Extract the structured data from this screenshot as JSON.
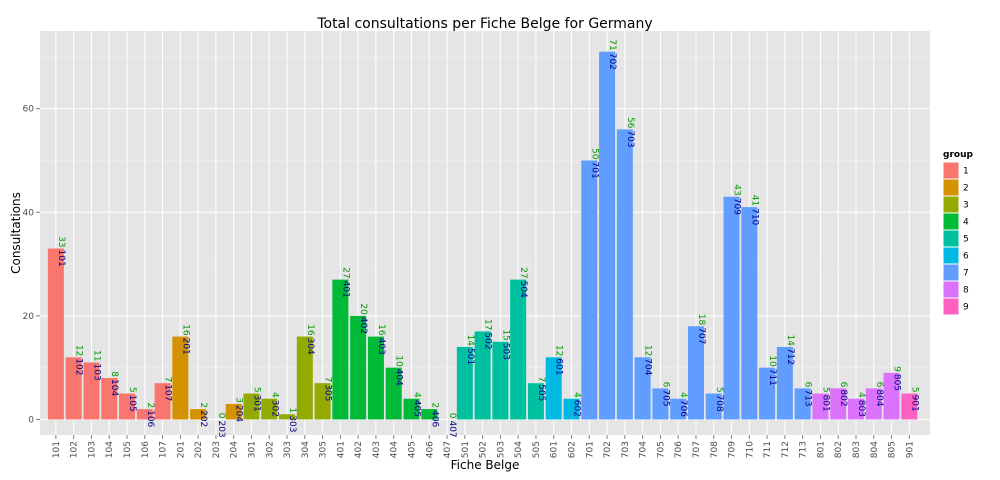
{
  "chart_data": {
    "type": "bar",
    "title": "Total consultations per Fiche Belge for Germany",
    "xlabel": "Fiche Belge",
    "ylabel": "Consultations",
    "ylim": [
      -3,
      75
    ],
    "yticks": [
      0,
      20,
      40,
      60
    ],
    "grid": true,
    "legend": {
      "title": "group",
      "placement": "right",
      "items": [
        {
          "label": "1",
          "color": "#F8766D"
        },
        {
          "label": "2",
          "color": "#D39200"
        },
        {
          "label": "3",
          "color": "#93AA00"
        },
        {
          "label": "4",
          "color": "#00BA38"
        },
        {
          "label": "5",
          "color": "#00C19F"
        },
        {
          "label": "6",
          "color": "#00B9E3"
        },
        {
          "label": "7",
          "color": "#619CFF"
        },
        {
          "label": "8",
          "color": "#DB72FB"
        },
        {
          "label": "9",
          "color": "#FF61C3"
        }
      ]
    },
    "categories": [
      "101",
      "102",
      "103",
      "104",
      "105",
      "106",
      "107",
      "201",
      "202",
      "203",
      "204",
      "301",
      "302",
      "303",
      "304",
      "305",
      "401",
      "402",
      "403",
      "404",
      "405",
      "406",
      "407",
      "501",
      "502",
      "503",
      "504",
      "505",
      "601",
      "602",
      "701",
      "702",
      "703",
      "704",
      "705",
      "706",
      "707",
      "708",
      "709",
      "710",
      "711",
      "712",
      "713",
      "801",
      "802",
      "803",
      "804",
      "805",
      "901"
    ],
    "values": [
      33,
      12,
      11,
      8,
      5,
      2,
      7,
      16,
      2,
      0,
      3,
      5,
      4,
      1,
      16,
      7,
      27,
      20,
      16,
      10,
      4,
      2,
      0,
      14,
      17,
      15,
      27,
      7,
      12,
      4,
      50,
      71,
      56,
      12,
      6,
      4,
      18,
      5,
      43,
      41,
      10,
      14,
      6,
      5,
      6,
      4,
      6,
      9,
      5
    ],
    "groups": [
      1,
      1,
      1,
      1,
      1,
      1,
      1,
      2,
      2,
      2,
      2,
      3,
      3,
      3,
      3,
      3,
      4,
      4,
      4,
      4,
      4,
      4,
      4,
      5,
      5,
      5,
      5,
      5,
      6,
      6,
      7,
      7,
      7,
      7,
      7,
      7,
      7,
      7,
      7,
      7,
      7,
      7,
      7,
      8,
      8,
      8,
      8,
      8,
      9
    ]
  }
}
